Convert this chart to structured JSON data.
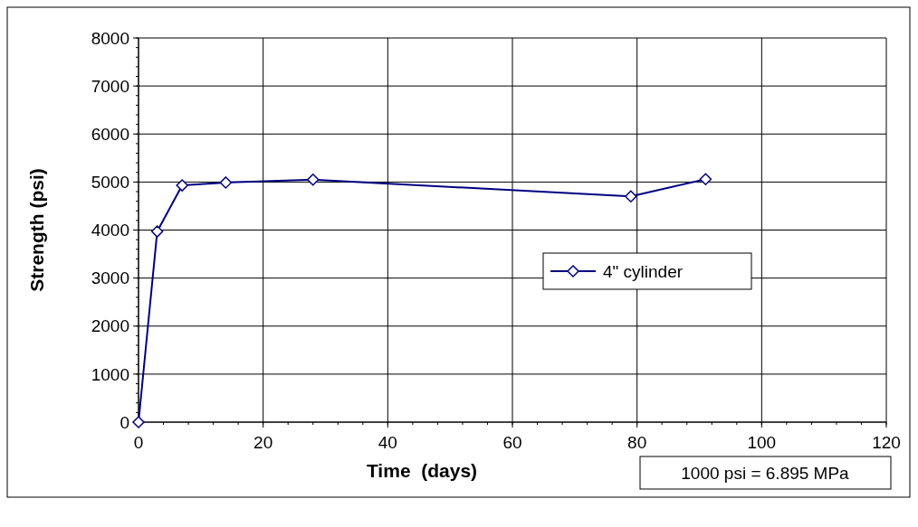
{
  "chart_data": {
    "type": "line",
    "xlabel": "Time  (days)",
    "ylabel": "Strength (psi)",
    "xlim": [
      0,
      120
    ],
    "xticks": [
      0,
      20,
      40,
      60,
      80,
      100,
      120
    ],
    "ylim": [
      0,
      8000
    ],
    "yticks": [
      0,
      1000,
      2000,
      3000,
      4000,
      5000,
      6000,
      7000,
      8000
    ],
    "series": [
      {
        "name": "4\" cylinder",
        "color": "#000080",
        "x": [
          0,
          3,
          7,
          14,
          28,
          79,
          91
        ],
        "values": [
          0,
          3970,
          4930,
          4990,
          5050,
          4700,
          5060
        ]
      }
    ],
    "grid": true,
    "legend": "right",
    "marker": "diamond",
    "line_style": "solid",
    "annotations": [
      "1000 psi = 6.895 MPa"
    ]
  }
}
